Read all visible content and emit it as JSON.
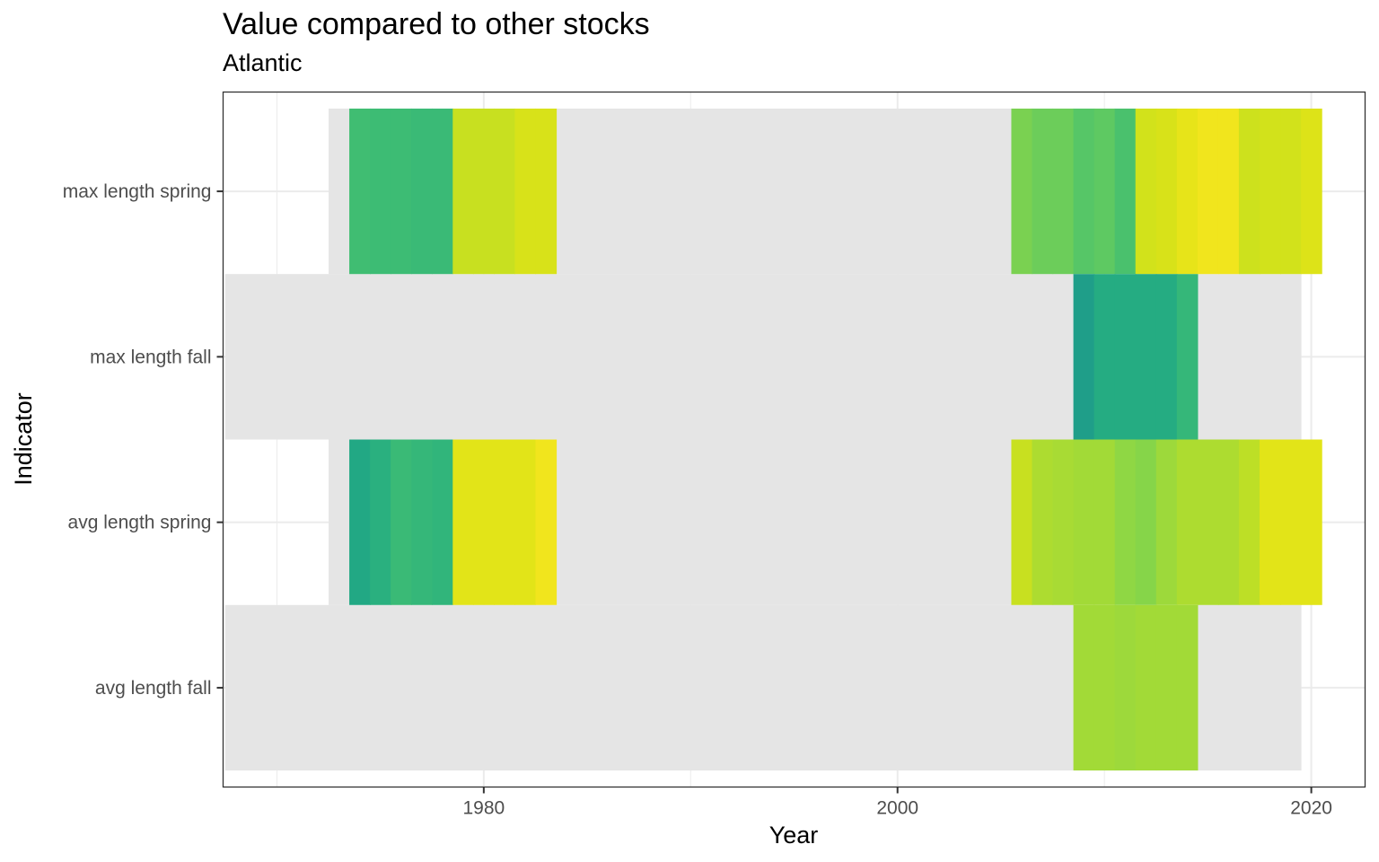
{
  "chart_data": {
    "type": "heatmap",
    "title": "Value compared to other stocks",
    "subtitle": "Atlantic",
    "xlabel": "Year",
    "ylabel": "Indicator",
    "xlim": [
      1967.4,
      2022.6
    ],
    "x_ticks": [
      1980,
      2000,
      2020
    ],
    "categories": [
      "max length spring",
      "max length fall",
      "avg length spring",
      "avg length fall"
    ],
    "grid": true,
    "legend": "none",
    "missing_color": "#e5e5e5",
    "rows": [
      {
        "name": "max length spring",
        "missing": [
          [
            1973,
            1974
          ],
          [
            1984,
            2006
          ]
        ],
        "cells": [
          {
            "year": 1974,
            "color": "#40bd72"
          },
          {
            "year": 1975,
            "color": "#3dbc74"
          },
          {
            "year": 1976,
            "color": "#3dbc74"
          },
          {
            "year": 1977,
            "color": "#3aba76"
          },
          {
            "year": 1978,
            "color": "#3aba76"
          },
          {
            "year": 1979,
            "color": "#c8e020"
          },
          {
            "year": 1980,
            "color": "#c8e020"
          },
          {
            "year": 1981,
            "color": "#c8e020"
          },
          {
            "year": 1982,
            "color": "#d8e219"
          },
          {
            "year": 1983,
            "color": "#d8e219"
          },
          {
            "year": 2006,
            "color": "#7ad151"
          },
          {
            "year": 2007,
            "color": "#6ccd5a"
          },
          {
            "year": 2008,
            "color": "#6ccd5a"
          },
          {
            "year": 2009,
            "color": "#56c667"
          },
          {
            "year": 2010,
            "color": "#5ec962"
          },
          {
            "year": 2011,
            "color": "#4ac16d"
          },
          {
            "year": 2012,
            "color": "#d2e21b"
          },
          {
            "year": 2013,
            "color": "#d8e219"
          },
          {
            "year": 2014,
            "color": "#e7e419"
          },
          {
            "year": 2015,
            "color": "#f1e51d"
          },
          {
            "year": 2016,
            "color": "#f1e51d"
          },
          {
            "year": 2017,
            "color": "#cde11d"
          },
          {
            "year": 2018,
            "color": "#d2e21b"
          },
          {
            "year": 2019,
            "color": "#d2e21b"
          },
          {
            "year": 2020,
            "color": "#dde318"
          }
        ]
      },
      {
        "name": "max length fall",
        "missing": [
          [
            1968,
            2009
          ],
          [
            2015,
            2020
          ]
        ],
        "cells": [
          {
            "year": 2009,
            "color": "#1f9e89"
          },
          {
            "year": 2010,
            "color": "#25ac82"
          },
          {
            "year": 2011,
            "color": "#25ac82"
          },
          {
            "year": 2012,
            "color": "#25ac82"
          },
          {
            "year": 2013,
            "color": "#25ac82"
          },
          {
            "year": 2014,
            "color": "#35b779"
          }
        ]
      },
      {
        "name": "avg length spring",
        "missing": [
          [
            1973,
            1974
          ],
          [
            1984,
            2006
          ]
        ],
        "cells": [
          {
            "year": 1974,
            "color": "#22a884"
          },
          {
            "year": 1975,
            "color": "#2ab07f"
          },
          {
            "year": 1976,
            "color": "#3aba76"
          },
          {
            "year": 1977,
            "color": "#35b779"
          },
          {
            "year": 1978,
            "color": "#31b57b"
          },
          {
            "year": 1979,
            "color": "#e2e418"
          },
          {
            "year": 1980,
            "color": "#e2e418"
          },
          {
            "year": 1981,
            "color": "#e2e418"
          },
          {
            "year": 1982,
            "color": "#e2e418"
          },
          {
            "year": 1983,
            "color": "#f1e51d"
          },
          {
            "year": 2006,
            "color": "#c8e020"
          },
          {
            "year": 2007,
            "color": "#addc30"
          },
          {
            "year": 2008,
            "color": "#a8db34"
          },
          {
            "year": 2009,
            "color": "#a2da37"
          },
          {
            "year": 2010,
            "color": "#a2da37"
          },
          {
            "year": 2011,
            "color": "#8fd744"
          },
          {
            "year": 2012,
            "color": "#86d549"
          },
          {
            "year": 2013,
            "color": "#9dd93b"
          },
          {
            "year": 2014,
            "color": "#addc30"
          },
          {
            "year": 2015,
            "color": "#addc30"
          },
          {
            "year": 2016,
            "color": "#addc30"
          },
          {
            "year": 2017,
            "color": "#bddf26"
          },
          {
            "year": 2018,
            "color": "#e2e418"
          },
          {
            "year": 2019,
            "color": "#e2e418"
          },
          {
            "year": 2020,
            "color": "#e2e418"
          }
        ]
      },
      {
        "name": "avg length fall",
        "missing": [
          [
            1968,
            2009
          ],
          [
            2015,
            2020
          ]
        ],
        "cells": [
          {
            "year": 2009,
            "color": "#a2da37"
          },
          {
            "year": 2010,
            "color": "#a2da37"
          },
          {
            "year": 2011,
            "color": "#9dd93b"
          },
          {
            "year": 2012,
            "color": "#a2da37"
          },
          {
            "year": 2013,
            "color": "#a2da37"
          },
          {
            "year": 2014,
            "color": "#a2da37"
          }
        ]
      }
    ]
  }
}
